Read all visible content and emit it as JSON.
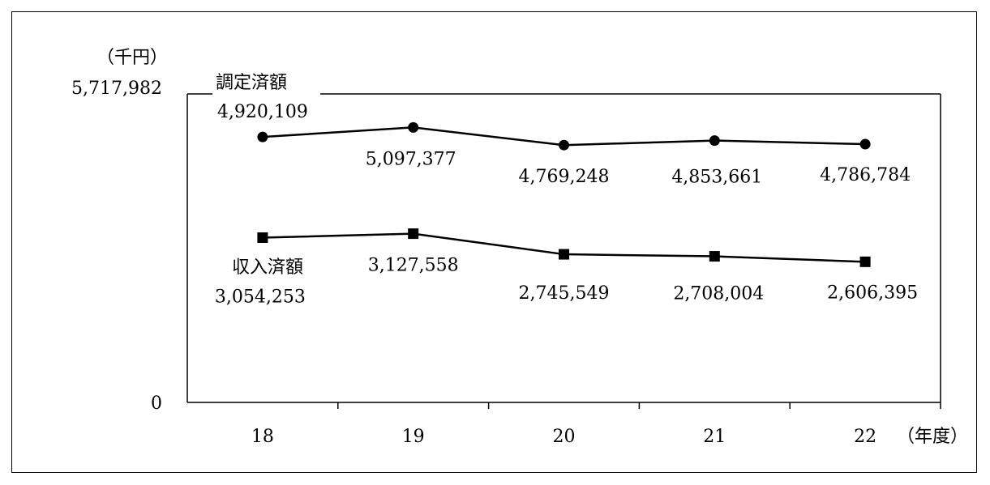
{
  "chart_data": {
    "type": "line",
    "unit_label": "（千円）",
    "x_unit_label": "（年度）",
    "categories": [
      "18",
      "19",
      "20",
      "21",
      "22"
    ],
    "ylim": [
      0,
      5717982
    ],
    "y_ticks": [
      {
        "value": 0,
        "label": "0"
      },
      {
        "value": 5717982,
        "label": "5,717,982"
      }
    ],
    "grid": false,
    "legend": "inline labels on first point",
    "series": [
      {
        "name": "調定済額",
        "marker": "circle",
        "color": "#000000",
        "values": [
          4920109,
          5097377,
          4769248,
          4853661,
          4786784
        ],
        "value_labels": [
          "4,920,109",
          "5,097,377",
          "4,769,248",
          "4,853,661",
          "4,786,784"
        ]
      },
      {
        "name": "収入済額",
        "marker": "square",
        "color": "#000000",
        "values": [
          3054253,
          3127558,
          2745549,
          2708004,
          2606395
        ],
        "value_labels": [
          "3,054,253",
          "3,127,558",
          "2,745,549",
          "2,708,004",
          "2,606,395"
        ]
      }
    ]
  }
}
